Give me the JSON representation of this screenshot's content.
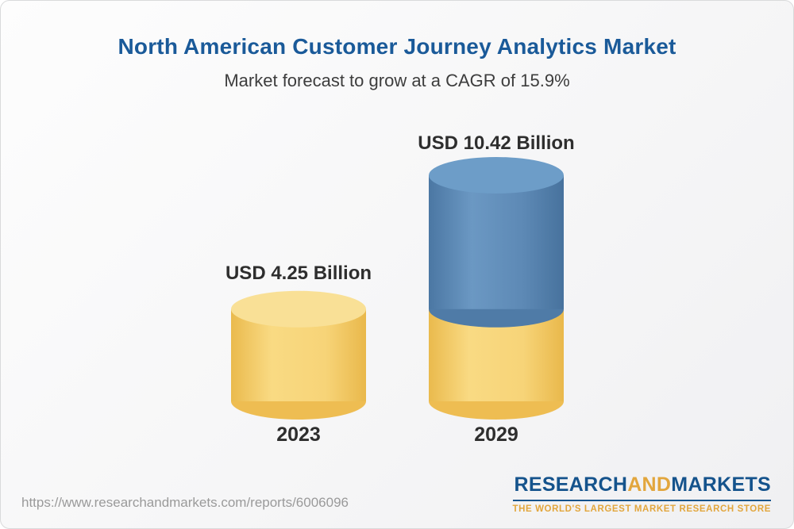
{
  "chart_data": {
    "type": "bar",
    "style": "3d-cylinder",
    "title": "North American Customer Journey Analytics Market",
    "subtitle": "Market forecast to grow at a CAGR of 15.9%",
    "categories": [
      "2023",
      "2029"
    ],
    "values": [
      4.25,
      10.42
    ],
    "unit": "USD Billion",
    "value_labels": [
      "USD 4.25 Billion",
      "USD 10.42 Billion"
    ],
    "cagr": "15.9%",
    "ylim": [
      0,
      10.42
    ],
    "legend": "none",
    "grid": "off",
    "note": "2029 cylinder shows the 2023 value as a yellow base segment with the growth portion in blue on top"
  },
  "footer": {
    "url": "https://www.researchandmarkets.com/reports/6006096",
    "logo": {
      "research": "RESEARCH",
      "and": "AND",
      "markets": "MARKETS",
      "tagline": "THE WORLD'S LARGEST MARKET RESEARCH STORE"
    }
  },
  "colors": {
    "title_blue": "#1a5a99",
    "subtitle_gray": "#3d3d3d",
    "label_dark": "#2e2e2e",
    "yellow_body": "#f7d578",
    "yellow_edge": "#eebd52",
    "yellow_top": "#f9e096",
    "blue_body": "#5d89b5",
    "blue_edge": "#4f7ba7",
    "blue_top": "#6d9dc8",
    "logo_blue": "#15538c",
    "logo_gold": "#e2a63d",
    "url_gray": "#9a9a9a"
  }
}
